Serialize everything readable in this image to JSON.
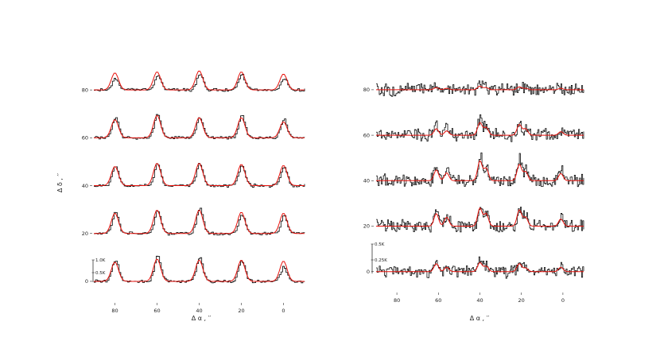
{
  "chart_data": [
    {
      "type": "line",
      "panel": "left",
      "xlabel": "Δ α , ′′",
      "ylabel": "Δ δ , ′′",
      "xlim": [
        90,
        -10
      ],
      "ylim": [
        -5,
        95
      ],
      "x_ticks": [
        80,
        60,
        40,
        20,
        0
      ],
      "y_ticks": [
        0,
        20,
        40,
        60,
        80
      ],
      "grid": false,
      "scale_bar": {
        "labels": [
          "1.0K",
          "0.5K"
        ],
        "values": [
          1.0,
          0.5
        ]
      },
      "offsets": [
        0,
        20,
        40,
        60,
        80
      ],
      "peak_x": [
        80,
        60,
        40,
        20,
        0
      ],
      "observed_peaks": [
        [
          1.0,
          1.2,
          1.1,
          0.95,
          0.65
        ],
        [
          0.95,
          1.05,
          1.15,
          0.9,
          0.8
        ],
        [
          0.9,
          1.0,
          1.05,
          0.95,
          0.9
        ],
        [
          0.95,
          1.15,
          0.95,
          1.0,
          0.85
        ],
        [
          0.5,
          0.65,
          0.75,
          0.7,
          0.55
        ]
      ],
      "model_peaks": [
        [
          0.9,
          1.05,
          1.0,
          1.0,
          0.95
        ],
        [
          0.95,
          1.1,
          1.1,
          1.0,
          0.95
        ],
        [
          0.9,
          1.05,
          1.05,
          1.0,
          0.95
        ],
        [
          0.85,
          1.05,
          0.95,
          0.95,
          0.75
        ],
        [
          0.8,
          0.85,
          0.9,
          0.85,
          0.75
        ]
      ],
      "series_colors": {
        "observed": "#000000",
        "model": "#e8120c"
      }
    },
    {
      "type": "line",
      "panel": "right",
      "xlabel": "Δ α , ′′",
      "xlim": [
        90,
        -10
      ],
      "ylim": [
        -5,
        95
      ],
      "x_ticks": [
        80,
        60,
        40,
        20,
        0
      ],
      "y_ticks": [
        0,
        20,
        40,
        60,
        80
      ],
      "grid": false,
      "scale_bar": {
        "labels": [
          "0.5K",
          "0.25K"
        ],
        "values": [
          0.5,
          0.25
        ]
      },
      "offsets": [
        0,
        20,
        40,
        60,
        80
      ],
      "peak_x": [
        61,
        56,
        40,
        37,
        21,
        18,
        1
      ],
      "observed_peaks": [
        [
          0.2,
          0.1,
          0.3,
          0.15,
          0.25,
          0.1,
          0.15
        ],
        [
          0.45,
          0.3,
          0.55,
          0.35,
          0.5,
          0.3,
          0.25
        ],
        [
          0.45,
          0.35,
          0.75,
          0.4,
          0.6,
          0.35,
          0.3
        ],
        [
          0.25,
          0.2,
          0.45,
          0.25,
          0.3,
          0.2,
          0.15
        ],
        [
          0.1,
          0.05,
          0.15,
          0.08,
          0.12,
          0.05,
          0.05
        ]
      ],
      "model_peaks": [
        [
          0.22,
          0.12,
          0.25,
          0.15,
          0.22,
          0.1,
          0.12
        ],
        [
          0.35,
          0.25,
          0.5,
          0.35,
          0.45,
          0.25,
          0.2
        ],
        [
          0.3,
          0.22,
          0.55,
          0.35,
          0.45,
          0.25,
          0.2
        ],
        [
          0.18,
          0.12,
          0.35,
          0.22,
          0.3,
          0.18,
          0.1
        ],
        [
          0.06,
          0.04,
          0.1,
          0.06,
          0.08,
          0.04,
          0.04
        ]
      ],
      "series_colors": {
        "observed": "#000000",
        "model": "#e8120c"
      }
    }
  ]
}
